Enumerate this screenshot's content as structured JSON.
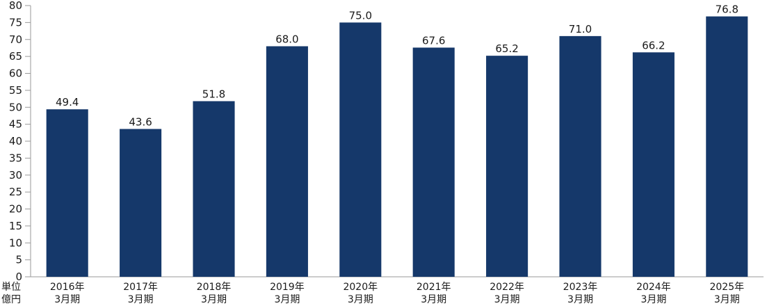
{
  "chart_data": {
    "type": "bar",
    "categories": [
      [
        "2016年",
        "3月期"
      ],
      [
        "2017年",
        "3月期"
      ],
      [
        "2018年",
        "3月期"
      ],
      [
        "2019年",
        "3月期"
      ],
      [
        "2020年",
        "3月期"
      ],
      [
        "2021年",
        "3月期"
      ],
      [
        "2022年",
        "3月期"
      ],
      [
        "2023年",
        "3月期"
      ],
      [
        "2024年",
        "3月期"
      ],
      [
        "2025年",
        "3月期"
      ]
    ],
    "values": [
      49.4,
      43.6,
      51.8,
      68.0,
      75.0,
      67.6,
      65.2,
      71.0,
      66.2,
      76.8
    ],
    "value_labels": [
      "49.4",
      "43.6",
      "51.8",
      "68.0",
      "75.0",
      "67.6",
      "65.2",
      "71.0",
      "66.2",
      "76.8"
    ],
    "ylim": [
      0,
      80
    ],
    "yticks": [
      0,
      5,
      10,
      15,
      20,
      25,
      30,
      35,
      40,
      45,
      50,
      55,
      60,
      65,
      70,
      75,
      80
    ],
    "unit_label": [
      "単位",
      "億円"
    ],
    "bar_color": "#15386a",
    "grid": false
  }
}
